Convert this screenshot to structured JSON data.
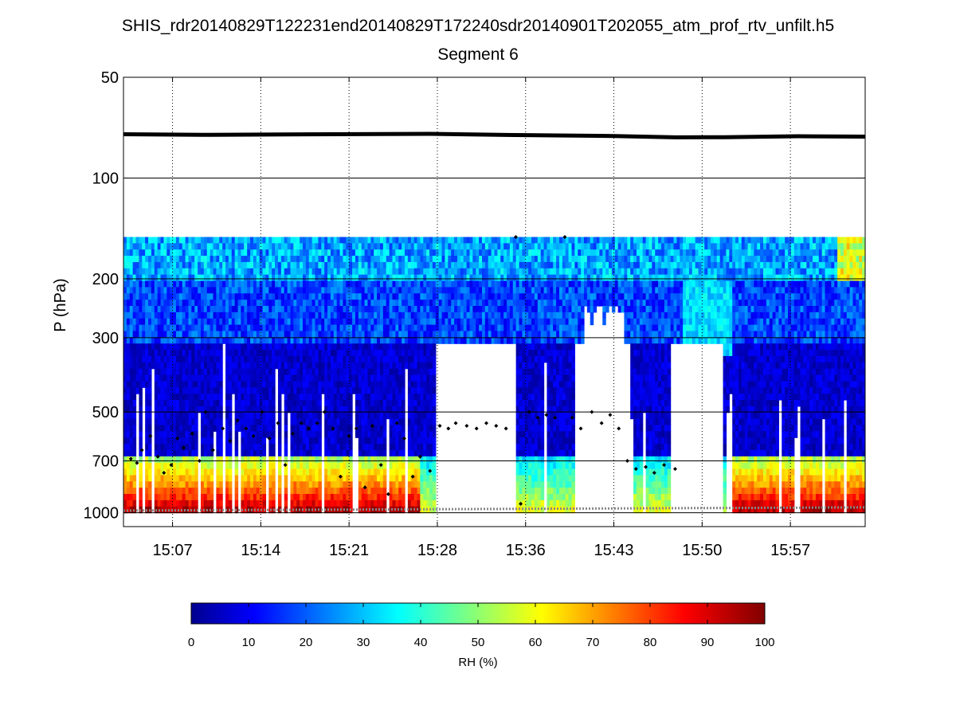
{
  "chart_data": {
    "type": "heatmap",
    "title": "SHIS_rdr20140829T122231end20140829T172240sdr20140901T202055_atm_prof_rtv_unfilt.h5",
    "subtitle": "Segment 6",
    "ylabel": "P (hPa)",
    "y_scale": "log",
    "y_reversed": true,
    "ylim": [
      50,
      1100
    ],
    "y_ticks": [
      50,
      100,
      200,
      300,
      500,
      700,
      1000
    ],
    "x_range_minutes": [
      903,
      963.5
    ],
    "x_ticks": [
      {
        "minute": 907,
        "label": "15:07"
      },
      {
        "minute": 914.2,
        "label": "15:14"
      },
      {
        "minute": 921.4,
        "label": "15:21"
      },
      {
        "minute": 928.6,
        "label": "15:28"
      },
      {
        "minute": 935.8,
        "label": "15:36"
      },
      {
        "minute": 943,
        "label": "15:43"
      },
      {
        "minute": 950.2,
        "label": "15:50"
      },
      {
        "minute": 957.4,
        "label": "15:57"
      }
    ],
    "grid": {
      "x": "dotted",
      "y": "solid"
    },
    "colorbar": {
      "title": "RH (%)",
      "range": [
        0,
        100
      ],
      "ticks": [
        0,
        10,
        20,
        30,
        40,
        50,
        60,
        70,
        80,
        90,
        100
      ],
      "colormap": "jet"
    },
    "data_pressure_range_hpa": [
      150,
      1000
    ],
    "tropopause_line_hpa": [
      [
        903,
        74.0
      ],
      [
        910,
        74.3
      ],
      [
        920,
        74.0
      ],
      [
        928,
        73.8
      ],
      [
        935,
        74.4
      ],
      [
        943,
        74.9
      ],
      [
        948,
        75.6
      ],
      [
        952,
        75.5
      ],
      [
        958,
        75.0
      ],
      [
        963.5,
        75.2
      ]
    ],
    "surface_pressure_hpa": 985,
    "cloud_top_markers": [
      [
        903.6,
        690
      ],
      [
        904.1,
        710
      ],
      [
        904.5,
        650
      ],
      [
        905.2,
        590
      ],
      [
        905.8,
        680
      ],
      [
        906.3,
        760
      ],
      [
        906.9,
        720
      ],
      [
        907.4,
        600
      ],
      [
        907.9,
        640
      ],
      [
        908.6,
        580
      ],
      [
        909.2,
        700
      ],
      [
        909.7,
        500
      ],
      [
        910.3,
        650
      ],
      [
        911.1,
        560
      ],
      [
        911.7,
        610
      ],
      [
        912.3,
        530
      ],
      [
        913,
        560
      ],
      [
        913.6,
        590
      ],
      [
        914.3,
        500
      ],
      [
        914.9,
        600
      ],
      [
        915.6,
        540
      ],
      [
        916.2,
        720
      ],
      [
        916.8,
        580
      ],
      [
        917.5,
        540
      ],
      [
        918.1,
        560
      ],
      [
        918.8,
        540
      ],
      [
        919.4,
        500
      ],
      [
        920.1,
        560
      ],
      [
        920.7,
        780
      ],
      [
        921.4,
        590
      ],
      [
        922,
        560
      ],
      [
        922.7,
        840
      ],
      [
        923.3,
        550
      ],
      [
        924,
        720
      ],
      [
        924.6,
        880
      ],
      [
        925.3,
        540
      ],
      [
        925.9,
        600
      ],
      [
        926.6,
        780
      ],
      [
        927.2,
        680
      ],
      [
        928,
        750
      ],
      [
        928.8,
        550
      ],
      [
        929.5,
        560
      ],
      [
        930.1,
        540
      ],
      [
        931,
        550
      ],
      [
        931.8,
        560
      ],
      [
        932.6,
        540
      ],
      [
        933.4,
        550
      ],
      [
        934.2,
        560
      ],
      [
        935,
        150
      ],
      [
        935.4,
        940
      ],
      [
        936.1,
        500
      ],
      [
        936.8,
        520
      ],
      [
        937.5,
        510
      ],
      [
        938.2,
        520
      ],
      [
        939,
        150
      ],
      [
        939.6,
        520
      ],
      [
        940.3,
        560
      ],
      [
        941.2,
        500
      ],
      [
        942,
        540
      ],
      [
        942.7,
        510
      ],
      [
        943.4,
        560
      ],
      [
        944.1,
        700
      ],
      [
        944.8,
        740
      ],
      [
        945.6,
        730
      ],
      [
        946.3,
        760
      ],
      [
        947.1,
        720
      ],
      [
        948,
        740
      ]
    ]
  }
}
